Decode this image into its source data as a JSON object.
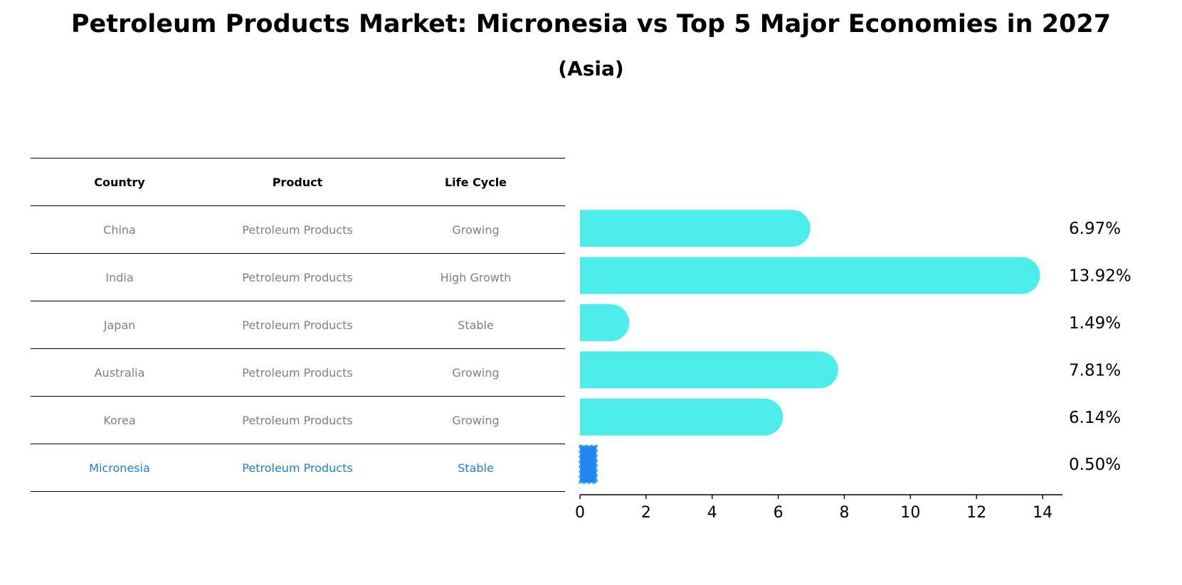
{
  "title": "Petroleum Products Market: Micronesia vs Top 5 Major Economies in 2027",
  "subtitle": "(Asia)",
  "table": {
    "headers": [
      "Country",
      "Product",
      "Life Cycle"
    ],
    "rows": [
      [
        "China",
        "Petroleum Products",
        "Growing"
      ],
      [
        "India",
        "Petroleum Products",
        "High Growth"
      ],
      [
        "Japan",
        "Petroleum Products",
        "Stable"
      ],
      [
        "Australia",
        "Petroleum Products",
        "Growing"
      ],
      [
        "Korea",
        "Petroleum Products",
        "Growing"
      ],
      [
        "Micronesia",
        "Petroleum Products",
        "Stable"
      ]
    ],
    "highlight_row": 5
  },
  "chart_data": {
    "type": "bar",
    "orientation": "horizontal",
    "categories": [
      "China",
      "India",
      "Japan",
      "Australia",
      "Korea",
      "Micronesia"
    ],
    "values": [
      6.97,
      13.92,
      1.49,
      7.81,
      6.14,
      0.5
    ],
    "value_labels": [
      "6.97%",
      "13.92%",
      "1.49%",
      "7.81%",
      "6.14%",
      "0.50%"
    ],
    "highlight_index": 5,
    "xlim": [
      0,
      14.6
    ],
    "xticks": [
      0,
      2,
      4,
      6,
      8,
      10,
      12,
      14
    ],
    "xlabel": "",
    "ylabel": "",
    "colors": {
      "default": "#4cecea",
      "highlight": "#1e88f0"
    }
  }
}
